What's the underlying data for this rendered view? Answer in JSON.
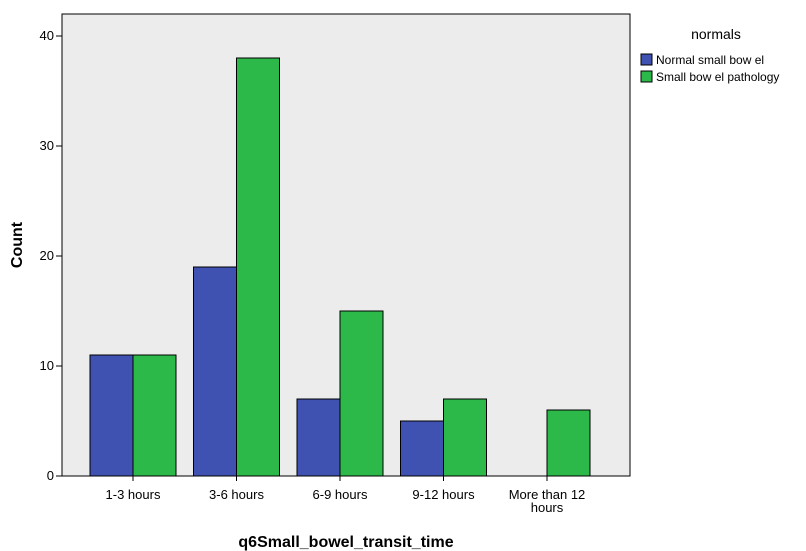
{
  "chart_data": {
    "type": "bar",
    "categories": [
      "1-3 hours",
      "3-6 hours",
      "6-9 hours",
      "9-12 hours",
      "More than 12 hours"
    ],
    "category_label_lines": [
      [
        "1-3 hours"
      ],
      [
        "3-6 hours"
      ],
      [
        "6-9 hours"
      ],
      [
        "9-12 hours"
      ],
      [
        "More than 12",
        "hours"
      ]
    ],
    "series": [
      {
        "name": "Normal small bow el",
        "color": "#3f51b1",
        "values": [
          11,
          19,
          7,
          5,
          0
        ]
      },
      {
        "name": "Small bow el pathology",
        "color": "#2db84a",
        "values": [
          11,
          38,
          15,
          7,
          6
        ]
      }
    ],
    "xlabel": "q6Small_bowel_transit_time",
    "ylabel": "Count",
    "ylim": [
      0,
      42
    ],
    "yticks": [
      0,
      10,
      20,
      30,
      40
    ],
    "legend_title": "normals",
    "legend_position": "top-right",
    "plot_background": "#ececec",
    "grid": false
  }
}
